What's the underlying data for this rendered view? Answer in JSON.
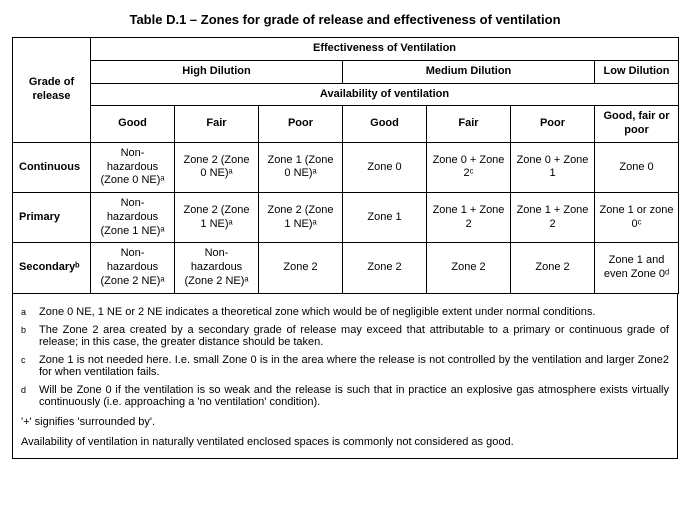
{
  "title": "Table D.1 – Zones for grade of release and effectiveness of ventilation",
  "headers": {
    "grade": "Grade of release",
    "effectiveness": "Effectiveness of Ventilation",
    "high": "High Dilution",
    "medium": "Medium Dilution",
    "low": "Low Dilution",
    "availability": "Availability of ventilation",
    "good": "Good",
    "fair": "Fair",
    "poor": "Poor",
    "gfp": "Good, fair or poor"
  },
  "rows": {
    "continuous": {
      "label": "Continuous",
      "c1": "Non-hazardous (Zone 0 NE)ᵃ",
      "c2": "Zone 2 (Zone 0 NE)ᵃ",
      "c3": "Zone 1 (Zone 0 NE)ᵃ",
      "c4": "Zone 0",
      "c5": "Zone 0 + Zone 2ᶜ",
      "c6": "Zone 0 + Zone 1",
      "c7": "Zone 0"
    },
    "primary": {
      "label": "Primary",
      "c1": "Non-hazardous (Zone 1 NE)ᵃ",
      "c2": "Zone 2 (Zone 1 NE)ᵃ",
      "c3": "Zone 2 (Zone 1 NE)ᵃ",
      "c4": "Zone 1",
      "c5": "Zone 1 + Zone 2",
      "c6": "Zone 1 + Zone 2",
      "c7": "Zone 1 or zone 0ᶜ"
    },
    "secondary": {
      "label": "Secondaryᵇ",
      "c1": "Non-hazardous (Zone 2 NE)ᵃ",
      "c2": "Non-hazardous (Zone 2 NE)ᵃ",
      "c3": "Zone 2",
      "c4": "Zone 2",
      "c5": "Zone 2",
      "c6": "Zone 2",
      "c7": "Zone 1 and even Zone 0ᵈ"
    }
  },
  "footnotes": {
    "a": {
      "mark": "a",
      "text": "Zone 0 NE, 1 NE or 2 NE indicates a theoretical zone which would be of negligible extent under normal conditions."
    },
    "b": {
      "mark": "b",
      "text": "The Zone 2 area created by a secondary grade of release may exceed that attributable to a primary or continuous grade of release; in this case, the greater distance should be taken."
    },
    "c": {
      "mark": "c",
      "text": "Zone 1 is not needed here. I.e. small Zone 0 is in the area where the release is not controlled by the ventilation and larger Zone2 for when ventilation fails."
    },
    "d": {
      "mark": "d",
      "text": "Will be Zone 0 if the ventilation is so weak and the release is such that in practice an explosive gas atmosphere exists virtually continuously (i.e. approaching a 'no ventilation' condition)."
    },
    "plus": "'+'  signifies 'surrounded by'.",
    "avail": "Availability of ventilation in naturally ventilated enclosed spaces is commonly not considered as good."
  }
}
